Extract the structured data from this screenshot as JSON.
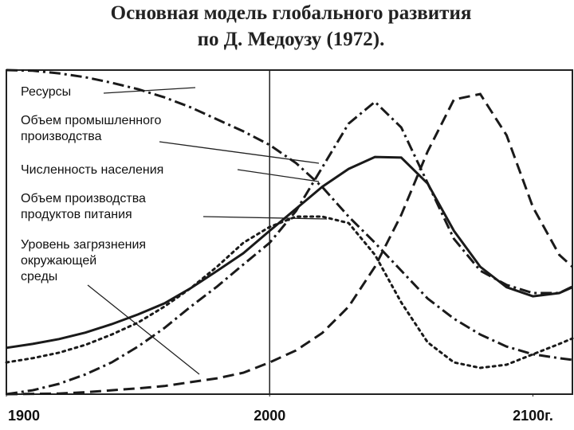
{
  "chart_data": {
    "type": "line",
    "title": "Основная модель глобального развития",
    "subtitle": "по Д. Медоузу (1972).",
    "x": [
      1900,
      1910,
      1920,
      1930,
      1940,
      1950,
      1960,
      1970,
      1980,
      1990,
      2000,
      2010,
      2020,
      2030,
      2040,
      2050,
      2060,
      2070,
      2080,
      2090,
      2100,
      2110,
      2115
    ],
    "xlim": [
      1900,
      2115
    ],
    "xticks": [
      1900,
      2000,
      {
        "value": 2100,
        "label": "2100г."
      }
    ],
    "ylim": [
      0,
      100
    ],
    "reference_line": 2000,
    "series": [
      {
        "name": "Ресурсы",
        "color": "#1a1a1a",
        "style": "dashdot",
        "values": [
          100,
          99.8,
          99.0,
          97.8,
          96.1,
          94.1,
          91.6,
          88.5,
          84.8,
          81.1,
          76.9,
          71.3,
          63.9,
          54.8,
          46.7,
          38.1,
          29.5,
          23.3,
          18.4,
          14.7,
          12.3,
          11.1,
          10.6
        ]
      },
      {
        "name": "Объем промышленного\nпроизводства",
        "color": "#1a1a1a",
        "style": "dashdot",
        "values": [
          0,
          1.2,
          3.2,
          6.1,
          9.8,
          14.7,
          20.4,
          27,
          33.2,
          40,
          46.7,
          56.5,
          70,
          83.5,
          90.2,
          82.3,
          65.1,
          47.9,
          38.1,
          33.7,
          31.2,
          31.2,
          33.2
        ]
      },
      {
        "name": "Численность населения",
        "color": "#1a1a1a",
        "style": "solid",
        "values": [
          14.3,
          15.5,
          17,
          19,
          21.6,
          24.6,
          28,
          32.7,
          38,
          43.5,
          50.4,
          57.2,
          64,
          69.5,
          73.2,
          73,
          65,
          50.4,
          39.3,
          33,
          30.2,
          31.2,
          33
        ]
      },
      {
        "name": "Объем производства\nпродуктов питания",
        "color": "#1a1a1a",
        "style": "dotted",
        "values": [
          9.8,
          11.1,
          12.8,
          15.2,
          18.4,
          22.1,
          27,
          32.7,
          39.3,
          46.7,
          51.6,
          54.8,
          54.8,
          52.8,
          43,
          28.3,
          16,
          9.8,
          8.1,
          9.1,
          12.3,
          15.5,
          17.2
        ]
      },
      {
        "name": "Уровень загрязнения\nокружающей\nсреды",
        "color": "#1a1a1a",
        "style": "dashed",
        "values": [
          0,
          0.1,
          0.2,
          0.6,
          1.2,
          1.8,
          2.5,
          3.7,
          4.9,
          6.6,
          9.8,
          13.5,
          18.9,
          27,
          39.3,
          55.3,
          74.9,
          90.9,
          92.6,
          79.9,
          57.7,
          43,
          39.3
        ]
      }
    ]
  }
}
